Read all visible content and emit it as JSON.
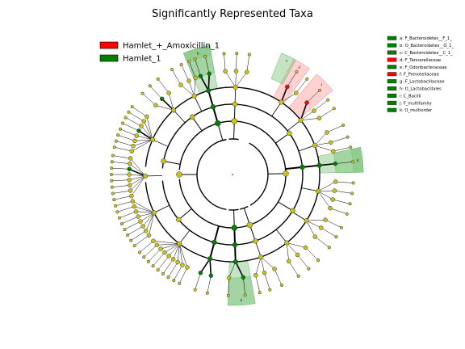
{
  "chart_data": {
    "type": "cladogram",
    "title": "Significantly Represented Taxa",
    "colors": {
      "enriched_group_1": "#ff0000",
      "enriched_group_2": "#008000",
      "non_significant": "#c8c21a",
      "highlight_group_1": "#ff9999",
      "highlight_group_2": "#7cc47c"
    },
    "groups": [
      {
        "name": "Hamlet_+_Amoxicillin_1",
        "color": "#ff0000"
      },
      {
        "name": "Hamlet_1",
        "color": "#008000"
      }
    ],
    "clades": [
      {
        "letter": "a",
        "label": "a: F_Bacteroidetes__F_1_",
        "group": "Hamlet_1"
      },
      {
        "letter": "b",
        "label": "b: O_Bacteroidetes__O_1_",
        "group": "Hamlet_1"
      },
      {
        "letter": "c",
        "label": "c: C_Bacteroidetes__C_1_",
        "group": "Hamlet_1"
      },
      {
        "letter": "d",
        "label": "d: F_Tannerellaceae",
        "group": "Hamlet_+_Amoxicillin_1"
      },
      {
        "letter": "e",
        "label": "e: F_Odoribacteraceae",
        "group": "Hamlet_1"
      },
      {
        "letter": "f",
        "label": "f: F_Prevotellaceae",
        "group": "Hamlet_+_Amoxicillin_1"
      },
      {
        "letter": "g",
        "label": "g: F_Lactobacillaceae",
        "group": "Hamlet_1"
      },
      {
        "letter": "h",
        "label": "h: O_Lactobacillales",
        "group": "Hamlet_1"
      },
      {
        "letter": "i",
        "label": "i: C_Bacilli",
        "group": "Hamlet_1"
      },
      {
        "letter": "j",
        "label": "j: F_multifamily",
        "group": "Hamlet_1"
      },
      {
        "letter": "k",
        "label": "k: O_multiorder",
        "group": "Hamlet_1"
      }
    ]
  }
}
